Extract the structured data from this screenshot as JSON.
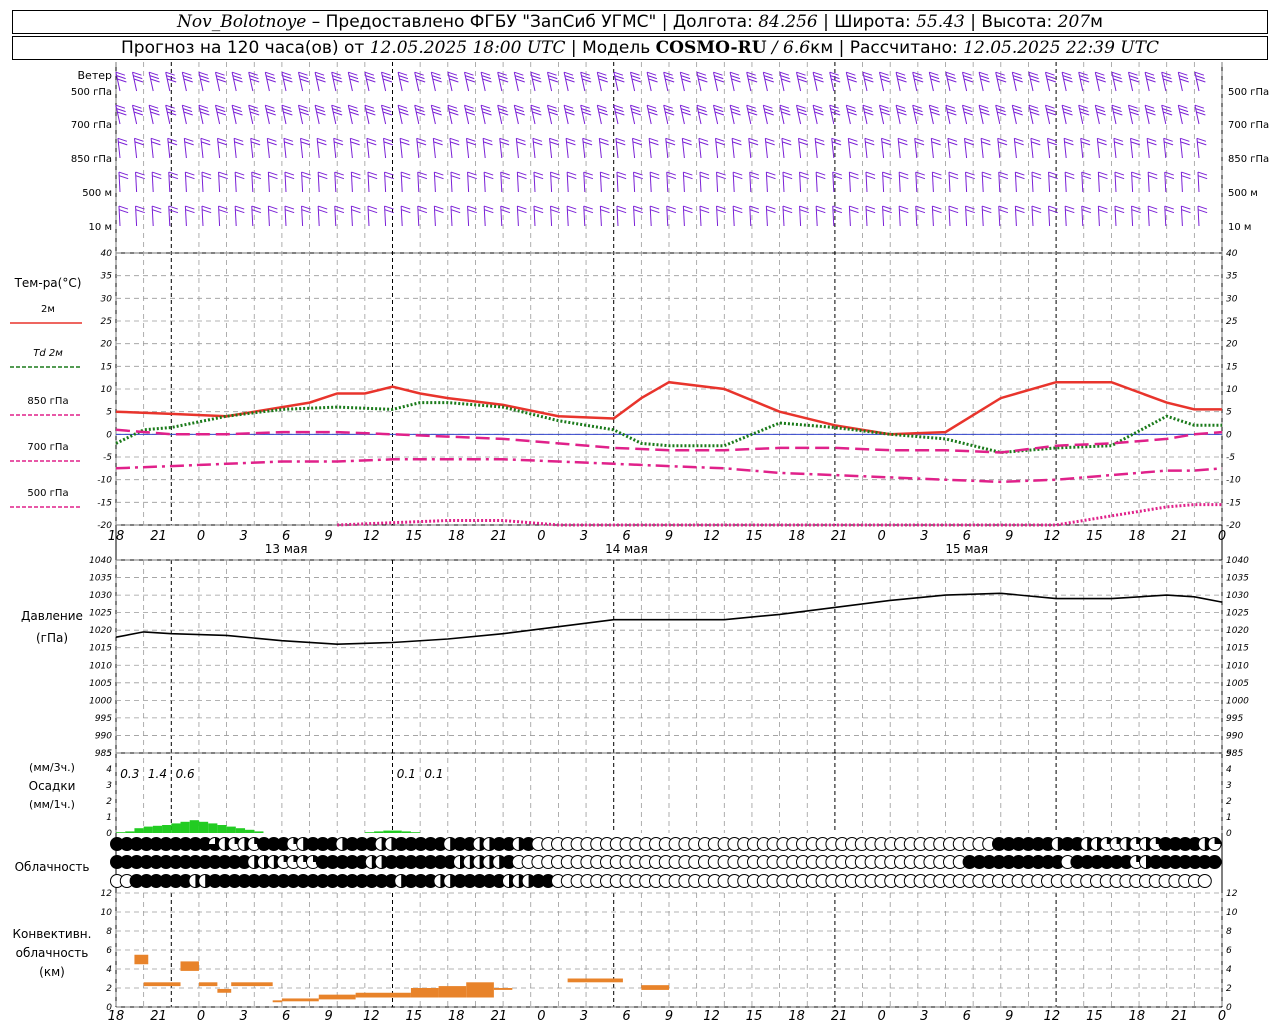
{
  "header": {
    "station": "Nov_Bolotnoye",
    "provider": "– Предоставлено ФГБУ \"ЗапСиб УГМС\"",
    "lon_label": "Долгота:",
    "lon_value": "84.256",
    "lat_label": "Широта:",
    "lat_value": "55.43",
    "alt_label": "Высота:",
    "alt_value": "207",
    "alt_unit": "м",
    "forecast_label": "Прогноз на 120 часа(ов) от",
    "forecast_from": "12.05.2025 18:00 UTC",
    "model_label": "Модель",
    "model_name": "COSMO-RU",
    "model_res": "/ 6.6",
    "model_res_unit": "км",
    "computed_label": "Рассчитано:",
    "computed_value": "12.05.2025 22:39 UTC"
  },
  "time_axis": {
    "hour_labels": [
      "18",
      "21",
      "0",
      "3",
      "6",
      "9",
      "12",
      "15",
      "18",
      "21",
      "0",
      "3",
      "6",
      "9",
      "12",
      "15",
      "18",
      "21",
      "0",
      "3",
      "6",
      "9",
      "12",
      "15",
      "18",
      "21",
      "0"
    ],
    "day_labels": [
      "13 мая",
      "14 мая",
      "15 мая"
    ]
  },
  "wind": {
    "title": "Ветер",
    "levels": [
      "500 гПа",
      "700 гПа",
      "850 гПа",
      "500 м",
      "10  м"
    ],
    "color": "#7a1fd6"
  },
  "chart_data": [
    {
      "type": "line",
      "title": "Тем-ра(°C)",
      "ylim": [
        -20,
        40
      ],
      "yticks": [
        -20,
        -15,
        -10,
        -5,
        0,
        5,
        10,
        15,
        20,
        25,
        30,
        35,
        40
      ],
      "x_unit": "hours since 12.05.2025 18:00 UTC",
      "series": [
        {
          "name": "2м",
          "color": "#e8342c",
          "style": "solid",
          "x": [
            0,
            6,
            12,
            15,
            21,
            24,
            27,
            30,
            33,
            36,
            42,
            48,
            54,
            57,
            60,
            66,
            72,
            78,
            84,
            90,
            96,
            102,
            108,
            114,
            117,
            120
          ],
          "values": [
            5,
            4.5,
            4,
            5,
            7,
            9,
            9,
            10.5,
            9,
            8,
            6.5,
            4,
            3.5,
            8,
            11.5,
            10,
            5,
            2,
            0,
            0.5,
            8,
            11.5,
            11.5,
            7,
            5.5,
            5.5
          ]
        },
        {
          "name": "Td 2м",
          "color": "#1a7a1a",
          "style": "dotted",
          "x": [
            0,
            3,
            6,
            12,
            18,
            24,
            30,
            33,
            36,
            42,
            48,
            54,
            57,
            60,
            66,
            72,
            78,
            84,
            90,
            96,
            102,
            108,
            114,
            117,
            120
          ],
          "values": [
            -2,
            1,
            1.5,
            4,
            5.5,
            6,
            5.5,
            7,
            7,
            6,
            3,
            1,
            -2,
            -2.5,
            -2.5,
            2.5,
            1.5,
            0,
            -1,
            -4,
            -3,
            -2.5,
            4,
            2,
            2
          ]
        },
        {
          "name": "850 гПа",
          "color": "#e0218a",
          "style": "dashed",
          "x": [
            0,
            6,
            12,
            18,
            24,
            30,
            36,
            42,
            48,
            54,
            60,
            66,
            72,
            78,
            84,
            90,
            96,
            102,
            108,
            114,
            117,
            120
          ],
          "values": [
            1,
            0,
            0,
            0.5,
            0.5,
            0,
            -0.5,
            -1,
            -2,
            -3,
            -3.5,
            -3.5,
            -3,
            -3,
            -3.5,
            -3.5,
            -4,
            -2.5,
            -2,
            -1,
            0,
            0.5
          ]
        },
        {
          "name": "700 гПа",
          "color": "#e0218a",
          "style": "dashdot",
          "x": [
            0,
            6,
            12,
            18,
            24,
            30,
            36,
            42,
            48,
            54,
            60,
            66,
            72,
            78,
            84,
            90,
            96,
            102,
            108,
            114,
            117,
            120
          ],
          "values": [
            -7.5,
            -7,
            -6.5,
            -6,
            -6,
            -5.5,
            -5.5,
            -5.5,
            -6,
            -6.5,
            -7,
            -7.5,
            -8.5,
            -9,
            -9.5,
            -10,
            -10.5,
            -10,
            -9,
            -8,
            -8,
            -7.5
          ]
        },
        {
          "name": "500 гПа",
          "color": "#e0218a",
          "style": "dotted",
          "x": [
            24,
            30,
            36,
            42,
            48,
            102,
            108,
            114,
            117,
            120
          ],
          "values": [
            -20,
            -19.5,
            -19,
            -19,
            -20,
            -20,
            -18,
            -16,
            -15.5,
            -15.5
          ]
        }
      ]
    },
    {
      "type": "line",
      "title": "Давление",
      "ylabel": "(гПа)",
      "ylim": [
        985,
        1040
      ],
      "yticks": [
        985,
        990,
        995,
        1000,
        1005,
        1010,
        1015,
        1020,
        1025,
        1030,
        1035,
        1040
      ],
      "x_unit": "hours since 12.05.2025 18:00 UTC",
      "series": [
        {
          "name": "",
          "color": "#000000",
          "x": [
            0,
            3,
            6,
            12,
            18,
            24,
            30,
            36,
            42,
            48,
            54,
            60,
            66,
            72,
            78,
            84,
            90,
            96,
            102,
            108,
            114,
            117,
            120
          ],
          "values": [
            1018,
            1019.5,
            1019,
            1018.5,
            1017,
            1016,
            1016.5,
            1017.5,
            1019,
            1021,
            1023,
            1023,
            1023,
            1024.5,
            1026.5,
            1028.5,
            1030,
            1030.5,
            1029,
            1029,
            1030,
            1029.5,
            1028
          ]
        }
      ]
    },
    {
      "type": "bar",
      "title": "Осадки",
      "ylabel": "(мм/3ч.)",
      "ylabel2": "(мм/1ч.)",
      "ylim": [
        0,
        5
      ],
      "yticks": [
        0,
        1,
        2,
        3,
        4,
        5
      ],
      "x_unit": "hours since 12.05.2025 18:00 UTC",
      "color": "#22cc22",
      "x": [
        1,
        2,
        3,
        4,
        5,
        6,
        7,
        8,
        9,
        10,
        11,
        12,
        13,
        14,
        15,
        16,
        28,
        29,
        30,
        31,
        32,
        33
      ],
      "values": [
        0.05,
        0.1,
        0.3,
        0.4,
        0.45,
        0.5,
        0.6,
        0.7,
        0.8,
        0.7,
        0.6,
        0.5,
        0.4,
        0.3,
        0.2,
        0.1,
        0.05,
        0.1,
        0.15,
        0.15,
        0.1,
        0.05
      ],
      "totals": [
        {
          "x": 1.5,
          "label": "0.3"
        },
        {
          "x": 4.5,
          "label": "1.4"
        },
        {
          "x": 7.5,
          "label": "0.6"
        },
        {
          "x": 31.5,
          "label": "0.1"
        },
        {
          "x": 34.5,
          "label": "0.1"
        }
      ]
    },
    {
      "type": "bar",
      "title": "Конвективн.",
      "title2": "облачность",
      "ylabel": "(км)",
      "ylim": [
        0,
        12
      ],
      "yticks": [
        0,
        2,
        4,
        6,
        8,
        10,
        12
      ],
      "x_unit": "hours since 12.05.2025 18:00 UTC",
      "color": "#e8832a",
      "segments": [
        {
          "x0": 2,
          "x1": 3.5,
          "base": 4.5,
          "top": 5.5
        },
        {
          "x0": 3,
          "x1": 7,
          "base": 2.2,
          "top": 2.6
        },
        {
          "x0": 7,
          "x1": 9,
          "base": 3.8,
          "top": 4.8
        },
        {
          "x0": 9,
          "x1": 11,
          "base": 2.2,
          "top": 2.6
        },
        {
          "x0": 11,
          "x1": 12.5,
          "base": 1.5,
          "top": 1.9
        },
        {
          "x0": 12.5,
          "x1": 17,
          "base": 2.2,
          "top": 2.6
        },
        {
          "x0": 17,
          "x1": 18,
          "base": 0.5,
          "top": 0.7
        },
        {
          "x0": 18,
          "x1": 22,
          "base": 0.6,
          "top": 0.9
        },
        {
          "x0": 22,
          "x1": 26,
          "base": 0.8,
          "top": 1.3
        },
        {
          "x0": 26,
          "x1": 32,
          "base": 1.0,
          "top": 1.5
        },
        {
          "x0": 32,
          "x1": 35,
          "base": 1.0,
          "top": 2.0
        },
        {
          "x0": 35,
          "x1": 38,
          "base": 1.0,
          "top": 2.2
        },
        {
          "x0": 38,
          "x1": 41,
          "base": 1.0,
          "top": 2.6
        },
        {
          "x0": 41,
          "x1": 43,
          "base": 1.8,
          "top": 2.0
        },
        {
          "x0": 49,
          "x1": 55,
          "base": 2.6,
          "top": 3.0
        },
        {
          "x0": 57,
          "x1": 60,
          "base": 1.8,
          "top": 2.3
        }
      ]
    }
  ],
  "clouds": {
    "title": "Облачность",
    "rows": [
      "FFFFFFFFFF3HQHQFFFQHFFFHFFFHHFFFFFHFFHHFFHF00000000000000000000000000000000000000000000000FFFFFFHFFHHQQHQHQFFFFHQ",
      "FFFFFFFFFFFFFFHHHQQQQFFFFFHHFFFFFFFHHHHHF0000000000000000000000000000000000000000000000FFFFFFFFFF0FFFFFFQHFFFFFFF",
      "00FFFFFFHHFFFFFFFFFFFFFFFFFFFHFFFHHFFFFFHHHFF0000000000000000000000000000000000000000000000000000000000000000000"
    ]
  }
}
